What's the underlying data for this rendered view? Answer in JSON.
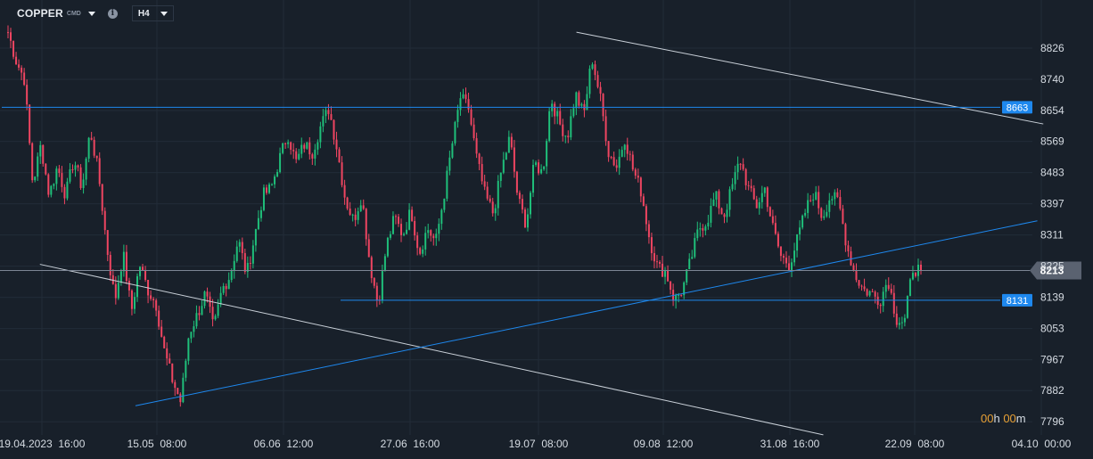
{
  "header": {
    "symbol": "COPPER",
    "symbol_sub": "CMD",
    "timeframe": "H4"
  },
  "timer": {
    "hours": "00",
    "hours_unit": "h",
    "minutes": "00",
    "minutes_unit": "m"
  },
  "colors": {
    "background": "#18202a",
    "grid": "#222c38",
    "up": "#1fbf7a",
    "down": "#ef4561",
    "trendline_blue": "#1e88ee",
    "trendline_white": "#c9d0d8",
    "label_blue": "#1e88ee",
    "price_tag": "#5a6270"
  },
  "chart_data": {
    "type": "candlestick",
    "instrument": "COPPER",
    "timeframe": "H4",
    "y_ticks": [
      "7796",
      "7882",
      "7967",
      "8053",
      "8139",
      "8225",
      "8311",
      "8397",
      "8483",
      "8569",
      "8654",
      "8740",
      "8826"
    ],
    "x_ticks": [
      "19.04.2023  16:00",
      "15.05  08:00",
      "06.06  12:00",
      "27.06  16:00",
      "19.07  08:00",
      "09.08  12:00",
      "31.08  16:00",
      "22.09  08:00",
      "04.10  00:00"
    ],
    "horizontal_levels": [
      {
        "value": 8663,
        "label": "8663"
      },
      {
        "value": 8131,
        "label": "8131"
      }
    ],
    "current_price": {
      "value": 8213,
      "label": "8213"
    },
    "close_path": [
      8870,
      8790,
      8740,
      8450,
      8560,
      8420,
      8500,
      8420,
      8520,
      8440,
      8600,
      8480,
      8280,
      8130,
      8260,
      8100,
      8230,
      8160,
      8120,
      7990,
      7910,
      7850,
      8040,
      8090,
      8150,
      8050,
      8160,
      8200,
      8300,
      8200,
      8310,
      8420,
      8440,
      8520,
      8590,
      8510,
      8560,
      8540,
      8610,
      8660,
      8550,
      8410,
      8350,
      8420,
      8230,
      8120,
      8280,
      8360,
      8310,
      8380,
      8260,
      8330,
      8290,
      8420,
      8560,
      8690,
      8660,
      8520,
      8420,
      8370,
      8490,
      8580,
      8410,
      8340,
      8510,
      8480,
      8690,
      8620,
      8580,
      8700,
      8640,
      8800,
      8690,
      8540,
      8500,
      8580,
      8490,
      8430,
      8300,
      8220,
      8210,
      8130,
      8160,
      8240,
      8330,
      8350,
      8420,
      8360,
      8440,
      8520,
      8440,
      8390,
      8440,
      8330,
      8250,
      8230,
      8300,
      8380,
      8430,
      8360,
      8420,
      8400,
      8280,
      8200,
      8160,
      8150,
      8130,
      8190,
      8080,
      8070,
      8220,
      8213
    ],
    "trendlines": [
      {
        "color": "white",
        "points": [
          [
            "19.04.2023 08:00",
            8230
          ],
          [
            "28.08 12:00",
            7760
          ]
        ]
      },
      {
        "color": "blue",
        "points": [
          [
            "05.05 08:00",
            7840
          ],
          [
            "03.10 08:00",
            8350
          ]
        ]
      },
      {
        "color": "white",
        "points": [
          [
            "18.07 04:00",
            8870
          ],
          [
            "04.10 08:00",
            8617
          ]
        ]
      }
    ]
  }
}
